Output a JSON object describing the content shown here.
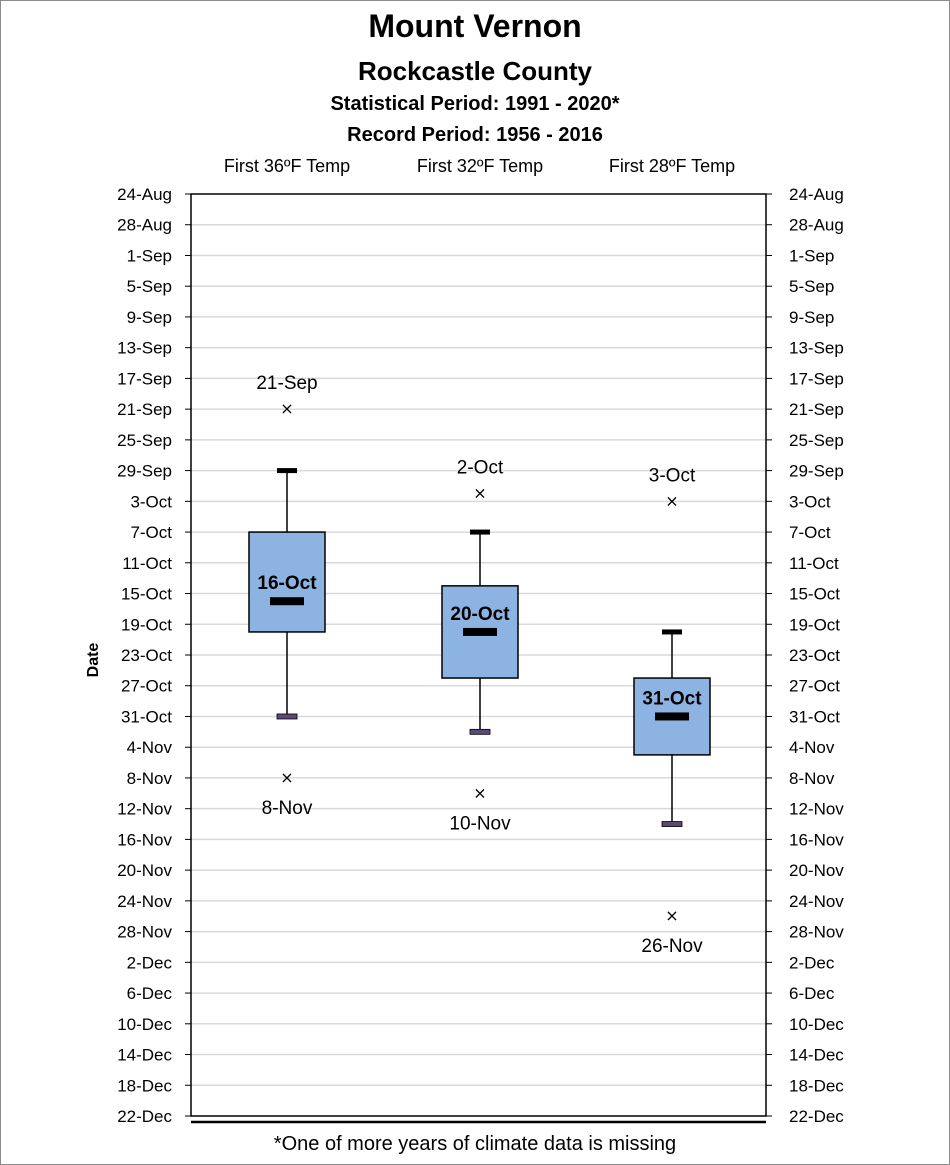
{
  "title": "Mount Vernon",
  "subtitle": "Rockcastle County",
  "statistical_period": "Statistical Period: 1991 - 2020*",
  "record_period": "Record Period: 1956 - 2016",
  "footnote": "*One of more years of climate data is missing",
  "chart_data": {
    "type": "box",
    "title": "Mount Vernon",
    "subtitle": "Rockcastle County",
    "ylabel": "Date",
    "y_reversed": true,
    "y_ticks": [
      "24-Aug",
      "28-Aug",
      "1-Sep",
      "5-Sep",
      "9-Sep",
      "13-Sep",
      "17-Sep",
      "21-Sep",
      "25-Sep",
      "29-Sep",
      "3-Oct",
      "7-Oct",
      "11-Oct",
      "15-Oct",
      "19-Oct",
      "23-Oct",
      "27-Oct",
      "31-Oct",
      "4-Nov",
      "8-Nov",
      "12-Nov",
      "16-Nov",
      "20-Nov",
      "24-Nov",
      "28-Nov",
      "2-Dec",
      "6-Dec",
      "10-Dec",
      "14-Dec",
      "18-Dec",
      "22-Dec"
    ],
    "y_range": [
      "24-Aug",
      "22-Dec"
    ],
    "gridlines": true,
    "categories": [
      "First 36ºF Temp",
      "First 32ºF Temp",
      "First 28ºF Temp"
    ],
    "series": [
      {
        "category": "First 36ºF Temp",
        "record_earliest": "21-Sep",
        "record_earliest_label": "21-Sep",
        "whisker_low": "29-Sep",
        "q1": "7-Oct",
        "median": "16-Oct",
        "median_label": "16-Oct",
        "q3": "20-Oct",
        "whisker_high": "31-Oct",
        "record_latest": "8-Nov",
        "record_latest_label": "8-Nov"
      },
      {
        "category": "First 32ºF Temp",
        "record_earliest": "2-Oct",
        "record_earliest_label": "2-Oct",
        "whisker_low": "7-Oct",
        "q1": "14-Oct",
        "median": "20-Oct",
        "median_label": "20-Oct",
        "q3": "26-Oct",
        "whisker_high": "2-Nov",
        "record_latest": "10-Nov",
        "record_latest_label": "10-Nov"
      },
      {
        "category": "First 28ºF Temp",
        "record_earliest": "3-Oct",
        "record_earliest_label": "3-Oct",
        "whisker_low": "20-Oct",
        "q1": "26-Oct",
        "median": "31-Oct",
        "median_label": "31-Oct",
        "q3": "5-Nov",
        "whisker_high": "14-Nov",
        "record_latest": "26-Nov",
        "record_latest_label": "26-Nov"
      }
    ],
    "colors": {
      "box_fill": "#8db3e2",
      "box_stroke": "#000000",
      "grid": "#d9d9d9",
      "whisker_low_cap": "#000000",
      "whisker_high_cap": "#5a4a78"
    }
  }
}
